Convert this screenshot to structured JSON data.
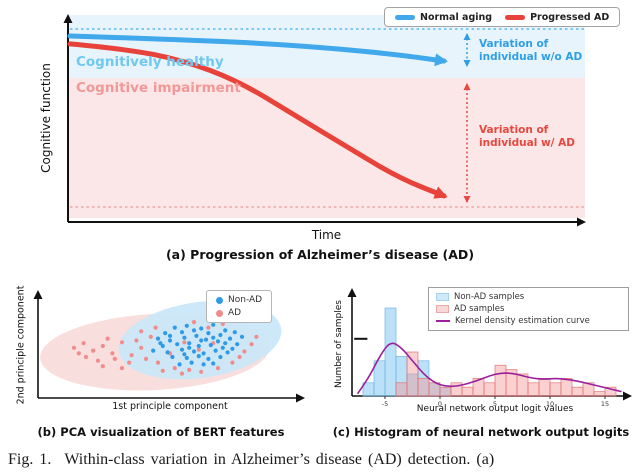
{
  "panel_a": {
    "caption": "(a) Progression of Alzheimer’s disease (AD)",
    "xlabel": "Time",
    "ylabel": "Cognitive function",
    "zone_healthy": "Cognitively healthy",
    "zone_impairment": "Cognitive impairment",
    "annotation_no_ad": "Variation of individual w/o AD",
    "annotation_ad": "Variation of individual w/ AD",
    "legend": [
      {
        "label": "Normal aging"
      },
      {
        "label": "Progressed AD"
      }
    ]
  },
  "panel_b": {
    "caption": "(b) PCA visualization of BERT features",
    "xlabel": "1st principle component",
    "ylabel": "2nd principle component",
    "legend": [
      {
        "label": "Non-AD"
      },
      {
        "label": "AD"
      }
    ]
  },
  "panel_c": {
    "caption": "(c) Histogram of neural network output logits",
    "xlabel": "Neural network output logit values",
    "ylabel": "Number of samples",
    "legend": [
      {
        "label": "Non-AD samples"
      },
      {
        "label": "AD samples"
      },
      {
        "label": "Kernel density estimation curve"
      }
    ]
  },
  "figure_caption": {
    "label": "Fig. 1.",
    "text": "Within-class variation in Alzheimer’s disease (AD) detection. (a)"
  },
  "colors": {
    "normal_aging": "#41A8EC",
    "progressed_ad": "#E8433A",
    "healthy_band": "#E7F4FC",
    "impairment_band": "#FBE7E7",
    "healthy_text": "#70C8F0",
    "impairment_text": "#F29898",
    "non_ad_dot": "#2F9BE8",
    "ad_dot": "#F28B8B",
    "kde": "#9C1F9C"
  },
  "chart_data": [
    {
      "type": "line",
      "panel": "a",
      "title": "(a) Progression of Alzheimer’s disease (AD)",
      "xlabel": "Time",
      "ylabel": "Cognitive function",
      "bands": [
        {
          "label": "Cognitively healthy",
          "color": "#E7F4FC"
        },
        {
          "label": "Cognitive impairment",
          "color": "#FBE7E7"
        }
      ],
      "annotations": [
        "Variation of individual w/o AD",
        "Variation of individual w/ AD"
      ],
      "y_convention": "normalized, 0 = highest cognitive function (top), 1 = lowest (bottom)",
      "series": [
        {
          "name": "Normal aging",
          "color": "#41A8EC",
          "points": [
            [
              0,
              0.084
            ],
            [
              0.3,
              0.103
            ],
            [
              0.6,
              0.132
            ],
            [
              0.85,
              0.176
            ],
            [
              1,
              0.216
            ]
          ]
        },
        {
          "name": "Progressed AD",
          "color": "#E8433A",
          "points": [
            [
              0,
              0.126
            ],
            [
              0.15,
              0.153
            ],
            [
              0.3,
              0.211
            ],
            [
              0.45,
              0.321
            ],
            [
              0.6,
              0.5
            ],
            [
              0.75,
              0.679
            ],
            [
              0.88,
              0.832
            ],
            [
              1,
              0.926
            ]
          ]
        }
      ]
    },
    {
      "type": "scatter",
      "panel": "b",
      "title": "(b) PCA visualization of BERT features",
      "xlabel": "1st principle component",
      "ylabel": "2nd principle component",
      "point_convention": "normalized plot coords, origin top-left",
      "series": [
        {
          "name": "Non-AD",
          "color": "#2F9BE8",
          "points": [
            [
              0.52,
              0.3
            ],
            [
              0.57,
              0.28
            ],
            [
              0.63,
              0.31
            ],
            [
              0.68,
              0.27
            ],
            [
              0.73,
              0.33
            ],
            [
              0.48,
              0.36
            ],
            [
              0.55,
              0.35
            ],
            [
              0.6,
              0.33
            ],
            [
              0.66,
              0.36
            ],
            [
              0.71,
              0.38
            ],
            [
              0.77,
              0.35
            ],
            [
              0.45,
              0.42
            ],
            [
              0.5,
              0.44
            ],
            [
              0.56,
              0.41
            ],
            [
              0.61,
              0.39
            ],
            [
              0.65,
              0.43
            ],
            [
              0.7,
              0.45
            ],
            [
              0.75,
              0.42
            ],
            [
              0.8,
              0.4
            ],
            [
              0.47,
              0.5
            ],
            [
              0.53,
              0.48
            ],
            [
              0.58,
              0.47
            ],
            [
              0.62,
              0.5
            ],
            [
              0.67,
              0.49
            ],
            [
              0.72,
              0.52
            ],
            [
              0.78,
              0.48
            ],
            [
              0.43,
              0.55
            ],
            [
              0.49,
              0.57
            ],
            [
              0.55,
              0.54
            ],
            [
              0.6,
              0.56
            ],
            [
              0.64,
              0.58
            ],
            [
              0.69,
              0.55
            ],
            [
              0.74,
              0.57
            ],
            [
              0.51,
              0.62
            ],
            [
              0.57,
              0.63
            ],
            [
              0.62,
              0.61
            ],
            [
              0.66,
              0.64
            ],
            [
              0.71,
              0.62
            ],
            [
              0.59,
              0.68
            ],
            [
              0.64,
              0.7
            ],
            [
              0.54,
              0.7
            ],
            [
              0.68,
              0.69
            ],
            [
              0.58,
              0.52
            ],
            [
              0.63,
              0.44
            ],
            [
              0.68,
              0.41
            ],
            [
              0.56,
              0.59
            ],
            [
              0.73,
              0.47
            ],
            [
              0.46,
              0.47
            ],
            [
              0.76,
              0.53
            ],
            [
              0.5,
              0.39
            ]
          ]
        },
        {
          "name": "AD",
          "color": "#F28B8B",
          "points": [
            [
              0.1,
              0.52
            ],
            [
              0.14,
              0.47
            ],
            [
              0.18,
              0.55
            ],
            [
              0.22,
              0.5
            ],
            [
              0.26,
              0.58
            ],
            [
              0.3,
              0.46
            ],
            [
              0.34,
              0.6
            ],
            [
              0.38,
              0.52
            ],
            [
              0.15,
              0.62
            ],
            [
              0.2,
              0.66
            ],
            [
              0.27,
              0.64
            ],
            [
              0.33,
              0.68
            ],
            [
              0.4,
              0.64
            ],
            [
              0.45,
              0.68
            ],
            [
              0.52,
              0.74
            ],
            [
              0.58,
              0.76
            ],
            [
              0.36,
              0.44
            ],
            [
              0.42,
              0.4
            ],
            [
              0.24,
              0.42
            ],
            [
              0.12,
              0.58
            ],
            [
              0.47,
              0.77
            ],
            [
              0.55,
              0.8
            ],
            [
              0.63,
              0.78
            ],
            [
              0.7,
              0.74
            ],
            [
              0.76,
              0.68
            ],
            [
              0.66,
              0.3
            ],
            [
              0.72,
              0.26
            ],
            [
              0.6,
              0.24
            ],
            [
              0.44,
              0.3
            ],
            [
              0.38,
              0.34
            ],
            [
              0.81,
              0.56
            ],
            [
              0.84,
              0.48
            ],
            [
              0.79,
              0.62
            ],
            [
              0.3,
              0.74
            ],
            [
              0.22,
              0.72
            ],
            [
              0.86,
              0.4
            ],
            [
              0.56,
              0.46
            ],
            [
              0.62,
              0.54
            ],
            [
              0.5,
              0.58
            ],
            [
              0.68,
              0.47
            ]
          ]
        }
      ]
    },
    {
      "type": "histogram",
      "panel": "c",
      "title": "(c) Histogram of neural network output logits",
      "xlabel": "Neural network output logit values",
      "ylabel": "Number of samples",
      "bin_width": 1,
      "xlim": [
        -8,
        17
      ],
      "ylim": [
        0,
        22
      ],
      "xticks": [
        -5,
        0,
        5,
        10,
        15
      ],
      "series": [
        {
          "name": "Non-AD samples",
          "fill": "rgba(130,200,240,0.55)",
          "edge": "rgba(110,180,225,0.95)",
          "bins": [
            [
              -7,
              3
            ],
            [
              -6,
              8
            ],
            [
              -5,
              20
            ],
            [
              -4,
              9
            ],
            [
              -3,
              5
            ],
            [
              -2,
              8
            ],
            [
              -1,
              3
            ],
            [
              0,
              2
            ]
          ]
        },
        {
          "name": "AD samples",
          "fill": "rgba(243,150,150,0.45)",
          "edge": "rgba(225,110,110,0.95)",
          "bins": [
            [
              -4,
              3
            ],
            [
              -3,
              10
            ],
            [
              -2,
              4
            ],
            [
              -1,
              3
            ],
            [
              0,
              2
            ],
            [
              1,
              3
            ],
            [
              2,
              2
            ],
            [
              3,
              4
            ],
            [
              4,
              3
            ],
            [
              5,
              7
            ],
            [
              6,
              6
            ],
            [
              7,
              5
            ],
            [
              8,
              3
            ],
            [
              9,
              4
            ],
            [
              10,
              3
            ],
            [
              11,
              4
            ],
            [
              12,
              2
            ],
            [
              13,
              3
            ],
            [
              14,
              1
            ],
            [
              15,
              2
            ]
          ]
        }
      ],
      "kde": [
        [
          -7.5,
          0.5
        ],
        [
          -6.5,
          4
        ],
        [
          -5.5,
          9
        ],
        [
          -4.5,
          12.5
        ],
        [
          -3.5,
          11
        ],
        [
          -2.5,
          8
        ],
        [
          -1.5,
          5
        ],
        [
          -0.5,
          3
        ],
        [
          0.5,
          2.2
        ],
        [
          1.5,
          2.2
        ],
        [
          2.5,
          2.8
        ],
        [
          3.5,
          3.6
        ],
        [
          4.5,
          4.6
        ],
        [
          5.5,
          5.2
        ],
        [
          6.5,
          5.2
        ],
        [
          7.5,
          4.6
        ],
        [
          8.5,
          4
        ],
        [
          9.5,
          3.8
        ],
        [
          10.5,
          4
        ],
        [
          11.5,
          3.8
        ],
        [
          12.5,
          3.4
        ],
        [
          13.5,
          2.8
        ],
        [
          14.5,
          2.2
        ],
        [
          15.5,
          1.6
        ],
        [
          16.5,
          1
        ]
      ],
      "marker": {
        "x0": -7.8,
        "x1": -6.6,
        "count": 13
      }
    }
  ]
}
